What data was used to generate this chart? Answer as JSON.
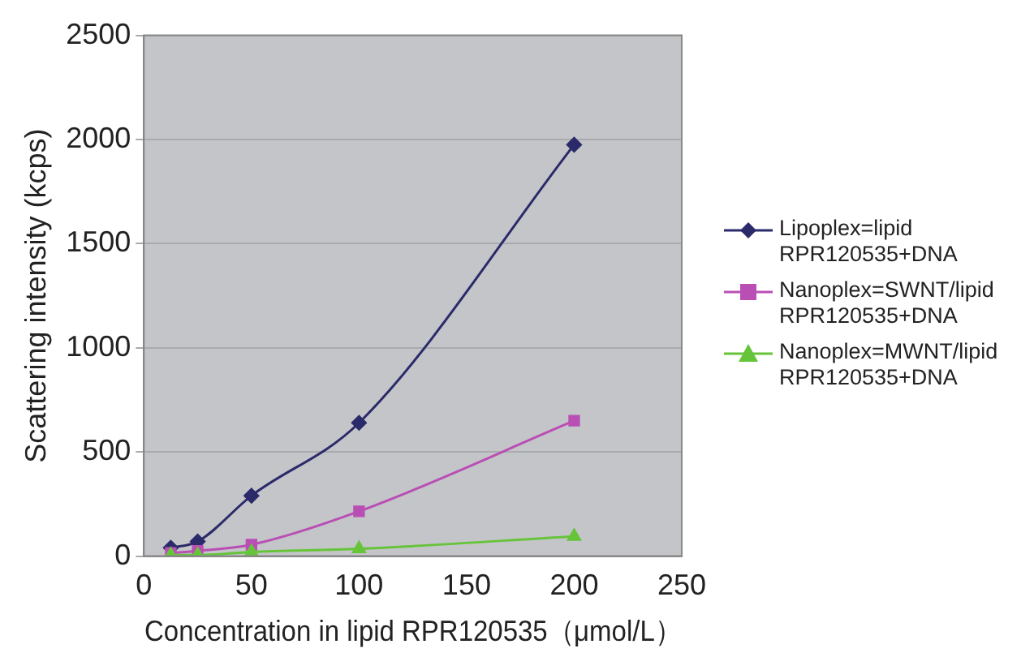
{
  "chart_data": {
    "type": "line",
    "xlabel": "Concentration in lipid RPR120535（μmol/L）",
    "ylabel": "Scattering intensity (kcps)",
    "x": [
      12.5,
      25,
      50,
      100,
      200
    ],
    "xlim": [
      0,
      250
    ],
    "xticks": [
      0,
      50,
      100,
      150,
      200,
      250
    ],
    "ylim": [
      0,
      2500
    ],
    "yticks": [
      0,
      500,
      1000,
      1500,
      2000,
      2500
    ],
    "grid": "y",
    "legend": "right",
    "series": [
      {
        "name": "Lipoplex=lipid RPR120535+DNA",
        "color": "#2b2b6b",
        "marker": "diamond",
        "values": [
          40,
          70,
          290,
          640,
          1975
        ]
      },
      {
        "name": "Nanoplex=SWNT/lipid RPR120535+DNA",
        "color": "#b94fb5",
        "marker": "square",
        "values": [
          15,
          25,
          55,
          215,
          650
        ]
      },
      {
        "name": "Nanoplex=MWNT/lipid RPR120535+DNA",
        "color": "#66c43a",
        "marker": "triangle",
        "values": [
          5,
          5,
          20,
          35,
          95
        ]
      }
    ]
  }
}
